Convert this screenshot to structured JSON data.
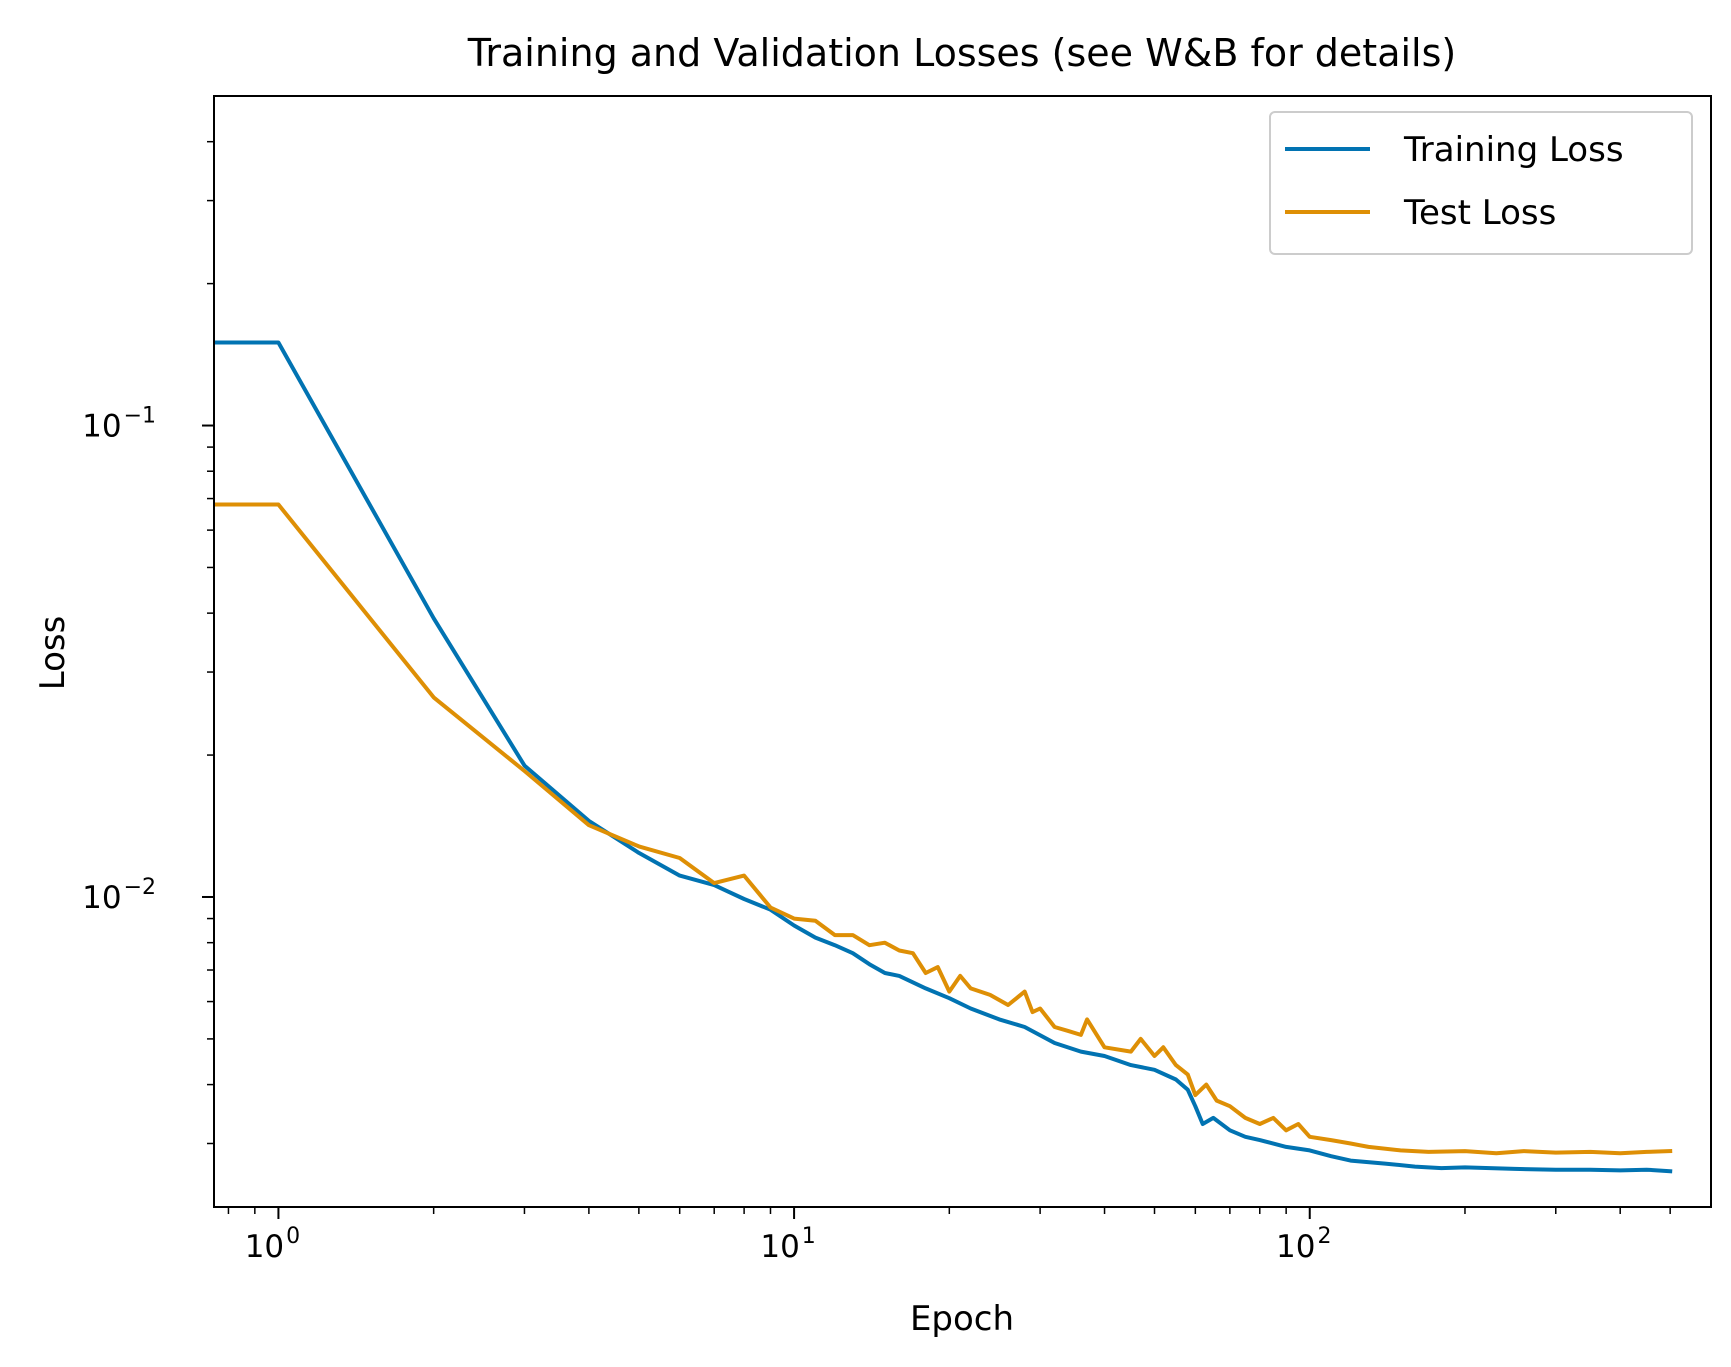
{
  "chart_data": {
    "type": "line",
    "title": "Training and Validation Losses (see W&B for details)",
    "xlabel": "Epoch",
    "ylabel": "Loss",
    "x_scale": "log",
    "y_scale": "log",
    "xlim": [
      0.75,
      600
    ],
    "ylim": [
      0.0022,
      0.5
    ],
    "grid": false,
    "legend_position": "top-right",
    "x_ticks": [
      {
        "value": 1,
        "base": "10",
        "exp": "0"
      },
      {
        "value": 10,
        "base": "10",
        "exp": "1"
      },
      {
        "value": 100,
        "base": "10",
        "exp": "2"
      }
    ],
    "y_ticks": [
      {
        "value": 0.1,
        "base": "10",
        "exp": "−1"
      },
      {
        "value": 0.01,
        "base": "10",
        "exp": "−2"
      }
    ],
    "series": [
      {
        "name": "Training Loss",
        "color": "#0173b2",
        "points": [
          [
            0.75,
            0.15
          ],
          [
            1,
            0.15
          ],
          [
            2,
            0.039
          ],
          [
            3,
            0.019
          ],
          [
            4,
            0.0145
          ],
          [
            5,
            0.0124
          ],
          [
            6,
            0.0111
          ],
          [
            7,
            0.0106
          ],
          [
            8,
            0.0099
          ],
          [
            9,
            0.0094
          ],
          [
            10,
            0.0087
          ],
          [
            11,
            0.0082
          ],
          [
            12,
            0.0079
          ],
          [
            13,
            0.0076
          ],
          [
            14,
            0.0072
          ],
          [
            15,
            0.0069
          ],
          [
            16,
            0.0068
          ],
          [
            18,
            0.0064
          ],
          [
            20,
            0.0061
          ],
          [
            22,
            0.0058
          ],
          [
            25,
            0.0055
          ],
          [
            28,
            0.0053
          ],
          [
            32,
            0.0049
          ],
          [
            36,
            0.0047
          ],
          [
            40,
            0.0046
          ],
          [
            45,
            0.0044
          ],
          [
            50,
            0.0043
          ],
          [
            55,
            0.0041
          ],
          [
            58,
            0.0039
          ],
          [
            60,
            0.0036
          ],
          [
            62,
            0.0033
          ],
          [
            65,
            0.0034
          ],
          [
            70,
            0.0032
          ],
          [
            75,
            0.0031
          ],
          [
            80,
            0.00305
          ],
          [
            90,
            0.00295
          ],
          [
            100,
            0.0029
          ],
          [
            110,
            0.00282
          ],
          [
            120,
            0.00276
          ],
          [
            140,
            0.00272
          ],
          [
            160,
            0.00268
          ],
          [
            180,
            0.00266
          ],
          [
            200,
            0.00267
          ],
          [
            250,
            0.00265
          ],
          [
            300,
            0.00264
          ],
          [
            350,
            0.00264
          ],
          [
            400,
            0.00263
          ],
          [
            450,
            0.00264
          ],
          [
            500,
            0.00262
          ]
        ]
      },
      {
        "name": "Test Loss",
        "color": "#de8f05",
        "points": [
          [
            0.75,
            0.068
          ],
          [
            1,
            0.068
          ],
          [
            2,
            0.0265
          ],
          [
            3,
            0.0185
          ],
          [
            4,
            0.0142
          ],
          [
            5,
            0.0128
          ],
          [
            6,
            0.0121
          ],
          [
            7,
            0.0107
          ],
          [
            8,
            0.0111
          ],
          [
            9,
            0.0095
          ],
          [
            10,
            0.009
          ],
          [
            11,
            0.0089
          ],
          [
            12,
            0.0083
          ],
          [
            13,
            0.0083
          ],
          [
            14,
            0.0079
          ],
          [
            15,
            0.008
          ],
          [
            16,
            0.0077
          ],
          [
            17,
            0.0076
          ],
          [
            18,
            0.0069
          ],
          [
            19,
            0.0071
          ],
          [
            20,
            0.0063
          ],
          [
            21,
            0.0068
          ],
          [
            22,
            0.0064
          ],
          [
            24,
            0.0062
          ],
          [
            26,
            0.0059
          ],
          [
            28,
            0.0063
          ],
          [
            29,
            0.0057
          ],
          [
            30,
            0.0058
          ],
          [
            32,
            0.0053
          ],
          [
            34,
            0.0052
          ],
          [
            36,
            0.0051
          ],
          [
            37,
            0.0055
          ],
          [
            40,
            0.0048
          ],
          [
            45,
            0.0047
          ],
          [
            47,
            0.005
          ],
          [
            50,
            0.0046
          ],
          [
            52,
            0.0048
          ],
          [
            55,
            0.0044
          ],
          [
            58,
            0.0042
          ],
          [
            60,
            0.0038
          ],
          [
            63,
            0.004
          ],
          [
            66,
            0.0037
          ],
          [
            70,
            0.0036
          ],
          [
            75,
            0.0034
          ],
          [
            80,
            0.0033
          ],
          [
            85,
            0.0034
          ],
          [
            90,
            0.0032
          ],
          [
            95,
            0.0033
          ],
          [
            100,
            0.0031
          ],
          [
            110,
            0.00305
          ],
          [
            120,
            0.003
          ],
          [
            130,
            0.00295
          ],
          [
            150,
            0.0029
          ],
          [
            170,
            0.00288
          ],
          [
            200,
            0.00289
          ],
          [
            230,
            0.00286
          ],
          [
            260,
            0.00289
          ],
          [
            300,
            0.00287
          ],
          [
            350,
            0.00288
          ],
          [
            400,
            0.00286
          ],
          [
            450,
            0.00288
          ],
          [
            500,
            0.00289
          ]
        ]
      }
    ]
  }
}
